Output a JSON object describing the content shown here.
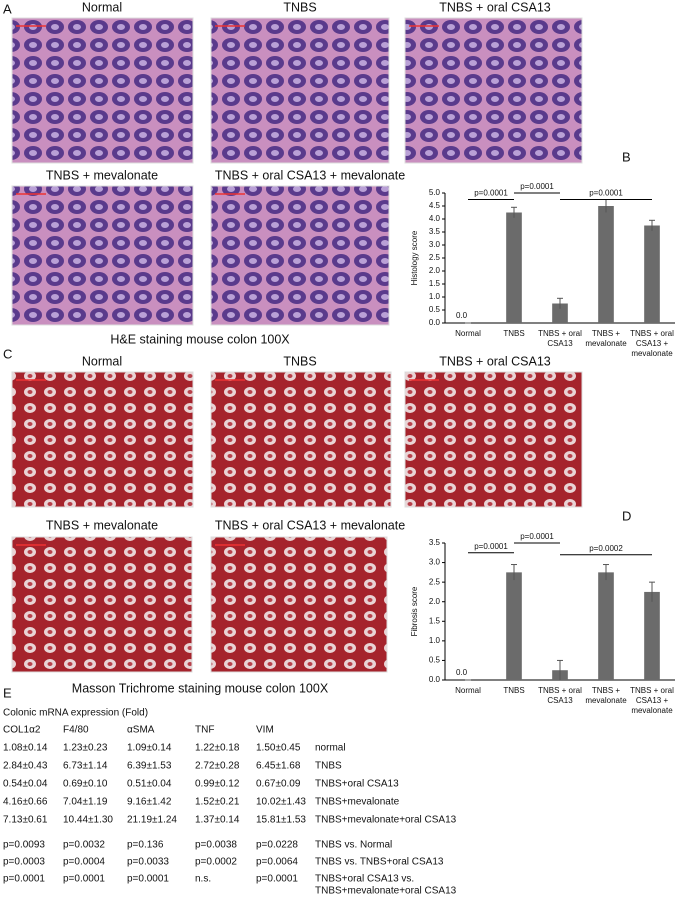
{
  "panel_labels": [
    "A",
    "B",
    "C",
    "D",
    "E"
  ],
  "he_images": [
    "Normal",
    "TNBS",
    "TNBS + oral CSA13",
    "TNBS + mevalonate",
    "TNBS + oral CSA13 + mevalonate"
  ],
  "he_caption": "H&E  staining mouse colon 100X",
  "mt_images": [
    "Normal",
    "TNBS",
    "TNBS + oral CSA13",
    "TNBS + mevalonate",
    "TNBS + oral CSA13 + mevalonate"
  ],
  "mt_caption": "Masson Trichrome  staining mouse colon 100X",
  "chart_data": [
    {
      "type": "bar",
      "y_label": "Histology score",
      "categories": [
        [
          "Normal"
        ],
        [
          "TNBS"
        ],
        [
          "TNBS + oral",
          "CSA13"
        ],
        [
          "TNBS +",
          "mevalonate"
        ],
        [
          "TNBS + oral",
          "CSA13 +",
          "mevalonate"
        ]
      ],
      "values": [
        0,
        4.25,
        0.75,
        4.5,
        3.75
      ],
      "errors": [
        0,
        0.2,
        0.2,
        0.25,
        0.2
      ],
      "value_labels": [
        "0.0",
        null,
        null,
        null,
        null
      ],
      "color": "#6b6b6b",
      "ylim": [
        0,
        5
      ],
      "yticks": [
        {
          "value": 0,
          "label": "0.0"
        },
        {
          "value": 0.5,
          "label": "0.5"
        },
        {
          "value": 1,
          "label": "1.0"
        },
        {
          "value": 1.5,
          "label": "1.5"
        },
        {
          "value": 2,
          "label": "2.0"
        },
        {
          "value": 2.5,
          "label": "2.5"
        },
        {
          "value": 3,
          "label": "3.0"
        },
        {
          "value": 3.5,
          "label": "3.5"
        },
        {
          "value": 4,
          "label": "4.0"
        },
        {
          "value": 4.5,
          "label": "4.5"
        },
        {
          "value": 5,
          "label": "5.0"
        }
      ],
      "annotations": [
        {
          "text": "p=0.0001",
          "from": 0,
          "to": 1,
          "y": 4.75
        },
        {
          "text": "p=0.0001",
          "from": 1,
          "to": 2,
          "y": 5
        },
        {
          "text": "p=0.0001",
          "from": 2,
          "to": 4,
          "y": 4.75
        }
      ]
    },
    {
      "type": "bar",
      "y_label": "Fibrosis score",
      "categories": [
        [
          "Normal"
        ],
        [
          "TNBS"
        ],
        [
          "TNBS + oral",
          "CSA13"
        ],
        [
          "TNBS +",
          "mevalonate"
        ],
        [
          "TNBS + oral",
          "CSA13 +",
          "mevalonate"
        ]
      ],
      "values": [
        0,
        2.75,
        0.25,
        2.75,
        2.25
      ],
      "errors": [
        0,
        0.2,
        0.25,
        0.2,
        0.25
      ],
      "value_labels": [
        "0.0",
        null,
        null,
        null,
        null
      ],
      "color": "#6b6b6b",
      "ylim": [
        0,
        3.5
      ],
      "yticks": [
        {
          "value": 0,
          "label": "0.0"
        },
        {
          "value": 0.5,
          "label": "0.5"
        },
        {
          "value": 1,
          "label": "1.0"
        },
        {
          "value": 1.5,
          "label": "1.5"
        },
        {
          "value": 2,
          "label": "2.0"
        },
        {
          "value": 2.5,
          "label": "2.5"
        },
        {
          "value": 3,
          "label": "3.0"
        },
        {
          "value": 3.5,
          "label": "3.5"
        }
      ],
      "annotations": [
        {
          "text": "p=0.0001",
          "from": 0,
          "to": 1,
          "y": 3.25
        },
        {
          "text": "p=0.0001",
          "from": 1,
          "to": 2,
          "y": 3.5
        },
        {
          "text": "p=0.0002",
          "from": 2,
          "to": 4,
          "y": 3.2
        }
      ]
    }
  ],
  "table": {
    "title": "Colonic mRNA expression (Fold)",
    "header": [
      "COL1α2",
      "F4/80",
      "αSMA",
      "TNF",
      "VIM"
    ],
    "rows": [
      [
        "1.08±0.14",
        "1.23±0.23",
        "1.09±0.14",
        "1.22±0.18",
        "1.50±0.45",
        "normal"
      ],
      [
        "2.84±0.43",
        "6.73±1.14",
        "6.39±1.53",
        "2.72±0.28",
        "6.45±1.68",
        "TNBS"
      ],
      [
        "0.54±0.04",
        "0.69±0.10",
        "0.51±0.04",
        "0.99±0.12",
        "0.67±0.09",
        "TNBS+oral CSA13"
      ],
      [
        "4.16±0.66",
        "7.04±1.19",
        "9.16±1.42",
        "1.52±0.21",
        "10.02±1.43",
        "TNBS+mevalonate"
      ],
      [
        "7.13±0.61",
        "10.44±1.30",
        "21.19±1.24",
        "1.37±0.14",
        "15.81±1.53",
        "TNBS+mevalonate+oral CSA13"
      ],
      [
        "p=0.0093",
        "p=0.0032",
        "p=0.136",
        "p=0.0038",
        "p=0.0228",
        "TNBS vs. Normal"
      ],
      [
        "p=0.0003",
        "p=0.0004",
        "p=0.0033",
        "p=0.0002",
        "p=0.0064",
        "TNBS vs. TNBS+oral CSA13"
      ],
      [
        "p=0.0001",
        "p=0.0001",
        "p=0.0001",
        "n.s.",
        "p=0.0001",
        [
          "TNBS+oral CSA13 vs.",
          "TNBS+mevalonate+oral CSA13"
        ]
      ]
    ]
  }
}
